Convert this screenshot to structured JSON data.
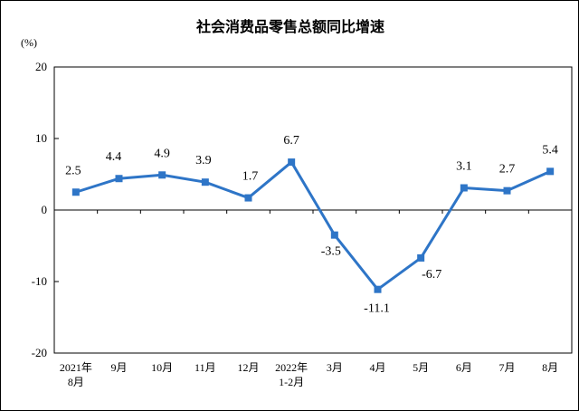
{
  "chart_data": {
    "type": "line",
    "title": "社会消费品零售总额同比增速",
    "ylabel": "(%)",
    "xlabel": "",
    "ylim": [
      -20,
      20
    ],
    "yticks": [
      -20,
      -10,
      0,
      10,
      20
    ],
    "grid": false,
    "legend": "none",
    "categories": [
      [
        "2021年",
        "8月"
      ],
      [
        "9月"
      ],
      [
        "10月"
      ],
      [
        "11月"
      ],
      [
        "12月"
      ],
      [
        "2022年",
        "1-2月"
      ],
      [
        "3月"
      ],
      [
        "4月"
      ],
      [
        "5月"
      ],
      [
        "6月"
      ],
      [
        "7月"
      ],
      [
        "8月"
      ]
    ],
    "series": [
      {
        "values": [
          2.5,
          4.4,
          4.9,
          3.9,
          1.7,
          6.7,
          -3.5,
          -11.1,
          -6.7,
          3.1,
          2.7,
          5.4
        ],
        "labels": [
          "2.5",
          "4.4",
          "4.9",
          "3.9",
          "1.7",
          "6.7",
          "-3.5",
          "-11.1",
          "-6.7",
          "3.1",
          "2.7",
          "5.4"
        ],
        "color": "#2e75c7"
      }
    ]
  }
}
